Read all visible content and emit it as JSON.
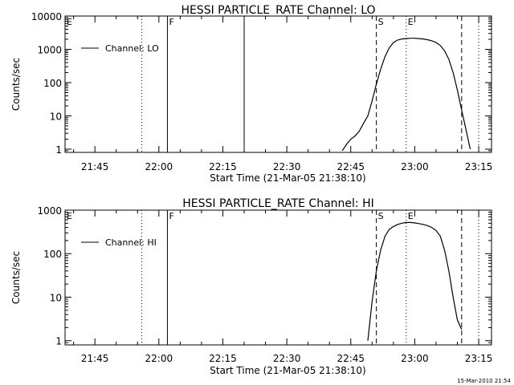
{
  "stamp": "15-Mar-2010 21:54",
  "chart_data": [
    {
      "type": "line",
      "title": "HESSI PARTICLE_RATE Channel: LO",
      "xlabel": "Start Time (21-Mar-05 21:38:10)",
      "ylabel": "Counts/sec",
      "yscale": "log",
      "xlim": [
        "21:38",
        "23:18"
      ],
      "ylim": [
        0.8,
        10000
      ],
      "x_ticks": [
        "21:45",
        "22:00",
        "22:15",
        "22:30",
        "22:45",
        "23:00",
        "23:15"
      ],
      "y_ticks": [
        "1",
        "10",
        "100",
        "1000",
        "10000"
      ],
      "legend": {
        "label": "Channel: LO",
        "position": "top-left"
      },
      "markers": [
        {
          "time": "21:38",
          "style": "dotted",
          "label": "E"
        },
        {
          "time": "21:56",
          "style": "dotted",
          "label": ""
        },
        {
          "time": "22:02",
          "style": "solid",
          "label": "F"
        },
        {
          "time": "22:20",
          "style": "solid",
          "label": ""
        },
        {
          "time": "22:51",
          "style": "dashed",
          "label": "S"
        },
        {
          "time": "22:58",
          "style": "dotted",
          "label": "E"
        },
        {
          "time": "23:11",
          "style": "dashed",
          "label": ""
        },
        {
          "time": "23:15",
          "style": "dotted",
          "label": ""
        }
      ],
      "series": [
        {
          "x": [
            "22:43",
            "22:44",
            "22:45",
            "22:46",
            "22:47",
            "22:48",
            "22:49",
            "22:50",
            "22:51",
            "22:52",
            "22:53",
            "22:54",
            "22:55",
            "22:56",
            "22:57",
            "22:58",
            "22:59",
            "23:00",
            "23:01",
            "23:02",
            "23:03",
            "23:04",
            "23:05",
            "23:06",
            "23:07",
            "23:08",
            "23:09",
            "23:10",
            "23:11",
            "23:12",
            "23:13"
          ],
          "y": [
            0.9,
            1.4,
            2,
            2.5,
            3.5,
            6,
            10,
            28,
            90,
            250,
            600,
            1100,
            1600,
            1900,
            2050,
            2100,
            2150,
            2150,
            2100,
            2050,
            1950,
            1800,
            1600,
            1300,
            900,
            500,
            200,
            60,
            15,
            4,
            1
          ]
        }
      ]
    },
    {
      "type": "line",
      "title": "HESSI PARTICLE_RATE Channel: HI",
      "xlabel": "Start Time (21-Mar-05 21:38:10)",
      "ylabel": "Counts/sec",
      "yscale": "log",
      "xlim": [
        "21:38",
        "23:18"
      ],
      "ylim": [
        0.8,
        1000
      ],
      "x_ticks": [
        "21:45",
        "22:00",
        "22:15",
        "22:30",
        "22:45",
        "23:00",
        "23:15"
      ],
      "y_ticks": [
        "1",
        "10",
        "100",
        "1000"
      ],
      "legend": {
        "label": "Channel: HI",
        "position": "top-left"
      },
      "markers": [
        {
          "time": "21:38",
          "style": "dotted",
          "label": "E"
        },
        {
          "time": "21:56",
          "style": "dotted",
          "label": ""
        },
        {
          "time": "22:02",
          "style": "solid",
          "label": "F"
        },
        {
          "time": "22:51",
          "style": "dashed",
          "label": "S"
        },
        {
          "time": "22:58",
          "style": "dotted",
          "label": "E"
        },
        {
          "time": "23:11",
          "style": "dashed",
          "label": ""
        },
        {
          "time": "23:15",
          "style": "dotted",
          "label": ""
        }
      ],
      "series": [
        {
          "x": [
            "22:49",
            "22:50",
            "22:51",
            "22:52",
            "22:53",
            "22:54",
            "22:55",
            "22:56",
            "22:57",
            "22:58",
            "22:59",
            "23:00",
            "23:01",
            "23:02",
            "23:03",
            "23:04",
            "23:05",
            "23:06",
            "23:07",
            "23:08",
            "23:09",
            "23:10",
            "23:11"
          ],
          "y": [
            1,
            8,
            40,
            120,
            250,
            360,
            420,
            470,
            500,
            520,
            520,
            510,
            490,
            470,
            440,
            400,
            340,
            250,
            120,
            40,
            10,
            3,
            1.8
          ]
        }
      ]
    }
  ]
}
